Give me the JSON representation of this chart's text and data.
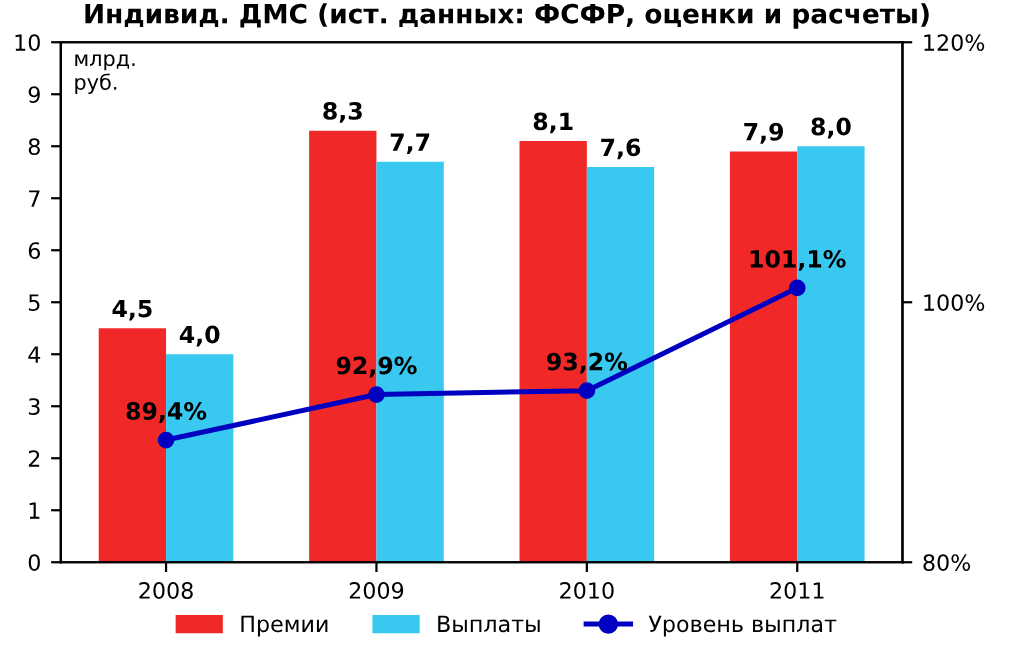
{
  "chart_data": {
    "type": "bar",
    "title": "Индивид. ДМС (ист. данных: ФСФР, оценки и расчеты)",
    "ylabel": "млрд.\nруб.",
    "categories": [
      "2008",
      "2009",
      "2010",
      "2011"
    ],
    "series": [
      {
        "name": "Премии",
        "color": "#f02828",
        "values": [
          4.5,
          8.3,
          8.1,
          7.9
        ],
        "value_labels": [
          "4,5",
          "8,3",
          "8,1",
          "7,9"
        ]
      },
      {
        "name": "Выплаты",
        "color": "#38c8f0",
        "values": [
          4.0,
          7.7,
          7.6,
          8.0
        ],
        "value_labels": [
          "4,0",
          "7,7",
          "7,6",
          "8,0"
        ]
      },
      {
        "name": "Уровень выплат",
        "type": "line",
        "axis": "y2",
        "color": "#0000c0",
        "marker": "circle",
        "values": [
          89.4,
          92.9,
          93.2,
          101.1
        ],
        "value_labels": [
          "89,4%",
          "92,9%",
          "93,2%",
          "101,1%"
        ]
      }
    ],
    "ylim": [
      0,
      10
    ],
    "yticks": [
      0,
      1,
      2,
      3,
      4,
      5,
      6,
      7,
      8,
      9,
      10
    ],
    "y2lim": [
      80,
      120
    ],
    "y2ticks": [
      {
        "value": 80,
        "label": "80%"
      },
      {
        "value": 100,
        "label": "100%"
      },
      {
        "value": 120,
        "label": "120%"
      }
    ],
    "grid": false,
    "legend": "bottom"
  }
}
